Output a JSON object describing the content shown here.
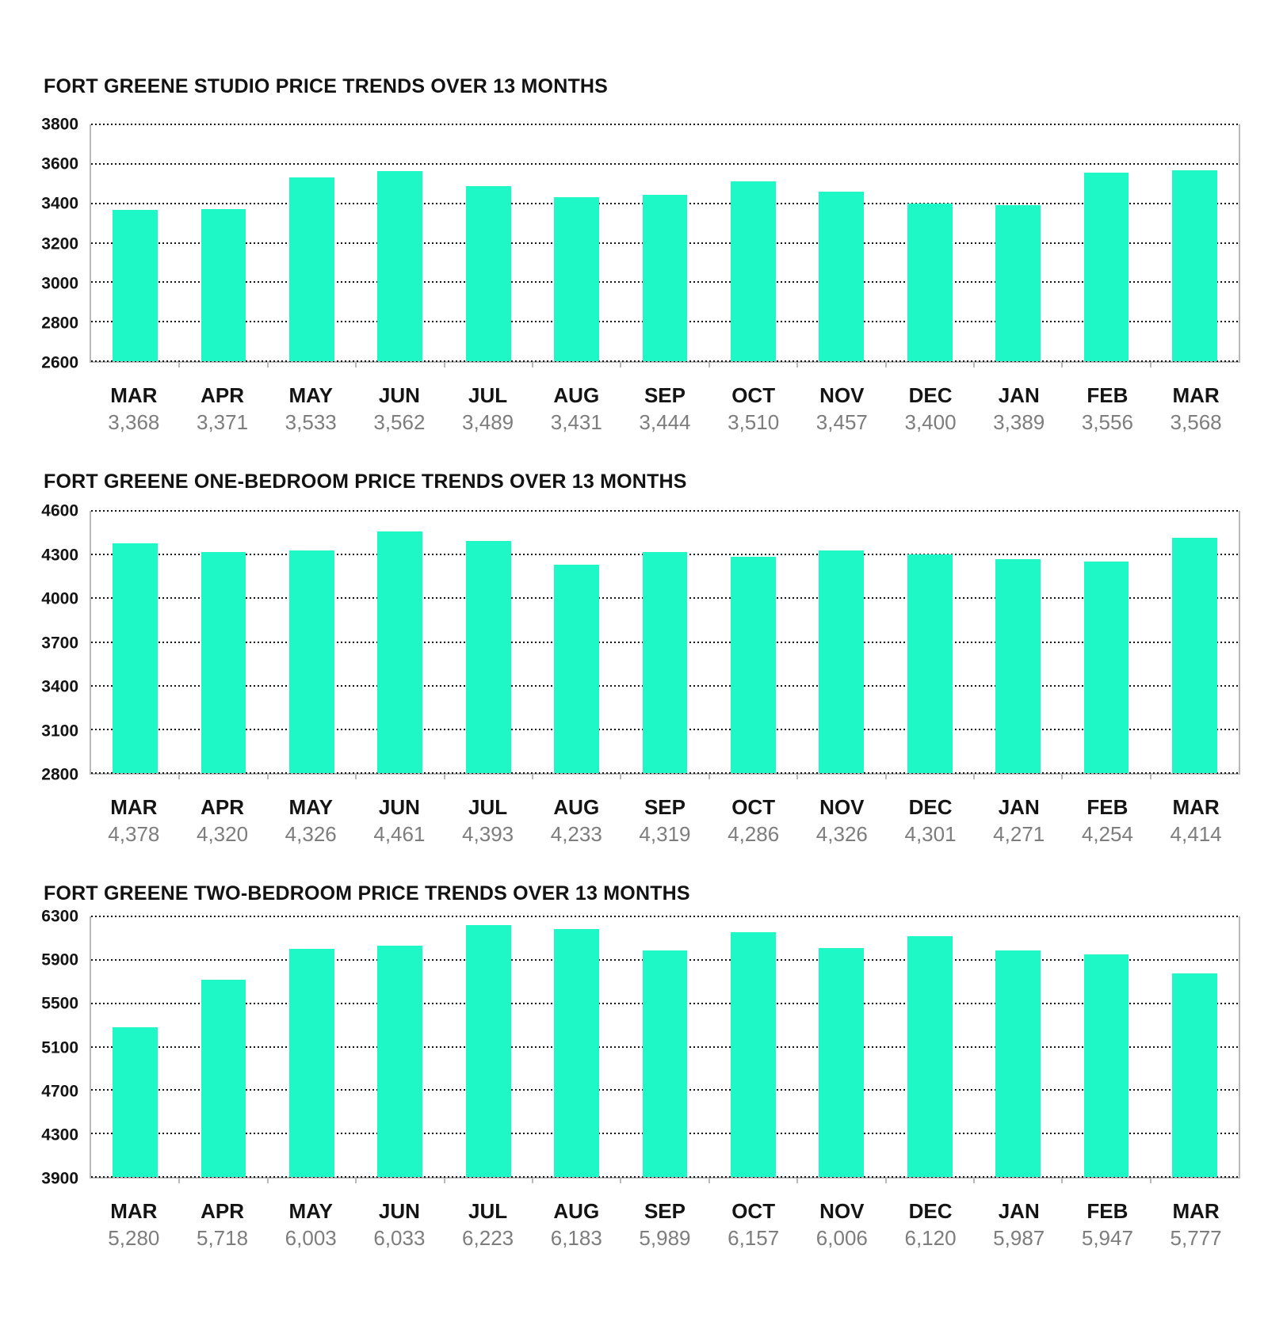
{
  "styles": {
    "bar_color": "#1ef7c6",
    "grid_color": "#141414",
    "axis_color": "#b9b9b9",
    "title_color": "#121212",
    "tick_color": "#141414",
    "value_color": "#7d7d7d",
    "background": "#ffffff"
  },
  "chart_data": [
    {
      "type": "bar",
      "title": "FORT GREENE STUDIO PRICE TRENDS OVER 13 MONTHS",
      "categories": [
        "MAR",
        "APR",
        "MAY",
        "JUN",
        "JUL",
        "AUG",
        "SEP",
        "OCT",
        "NOV",
        "DEC",
        "JAN",
        "FEB",
        "MAR"
      ],
      "values": [
        3368,
        3371,
        3533,
        3562,
        3489,
        3431,
        3444,
        3510,
        3457,
        3400,
        3389,
        3556,
        3568
      ],
      "value_labels": [
        "3,368",
        "3,371",
        "3,533",
        "3,562",
        "3,489",
        "3,431",
        "3,444",
        "3,510",
        "3,457",
        "3,400",
        "3,389",
        "3,556",
        "3,568"
      ],
      "ylim": [
        2600,
        3800
      ],
      "yticks": [
        2600,
        2800,
        3000,
        3200,
        3400,
        3600,
        3800
      ],
      "ytick_step": 200,
      "grid": true,
      "legend": null,
      "xlabel": "",
      "ylabel": ""
    },
    {
      "type": "bar",
      "title": "FORT GREENE ONE-BEDROOM PRICE TRENDS OVER 13 MONTHS",
      "categories": [
        "MAR",
        "APR",
        "MAY",
        "JUN",
        "JUL",
        "AUG",
        "SEP",
        "OCT",
        "NOV",
        "DEC",
        "JAN",
        "FEB",
        "MAR"
      ],
      "values": [
        4378,
        4320,
        4326,
        4461,
        4393,
        4233,
        4319,
        4286,
        4326,
        4301,
        4271,
        4254,
        4414
      ],
      "value_labels": [
        "4,378",
        "4,320",
        "4,326",
        "4,461",
        "4,393",
        "4,233",
        "4,319",
        "4,286",
        "4,326",
        "4,301",
        "4,271",
        "4,254",
        "4,414"
      ],
      "ylim": [
        2800,
        4600
      ],
      "yticks": [
        2800,
        3100,
        3400,
        3700,
        4000,
        4300,
        4600
      ],
      "ytick_step": 300,
      "grid": true,
      "legend": null,
      "xlabel": "",
      "ylabel": ""
    },
    {
      "type": "bar",
      "title": "FORT GREENE TWO-BEDROOM PRICE TRENDS OVER 13 MONTHS",
      "categories": [
        "MAR",
        "APR",
        "MAY",
        "JUN",
        "JUL",
        "AUG",
        "SEP",
        "OCT",
        "NOV",
        "DEC",
        "JAN",
        "FEB",
        "MAR"
      ],
      "values": [
        5280,
        5718,
        6003,
        6033,
        6223,
        6183,
        5989,
        6157,
        6006,
        6120,
        5987,
        5947,
        5777
      ],
      "value_labels": [
        "5,280",
        "5,718",
        "6,003",
        "6,033",
        "6,223",
        "6,183",
        "5,989",
        "6,157",
        "6,006",
        "6,120",
        "5,987",
        "5,947",
        "5,777"
      ],
      "ylim": [
        3900,
        6300
      ],
      "yticks": [
        3900,
        4300,
        4700,
        5100,
        5500,
        5900,
        6300
      ],
      "ytick_step": 400,
      "grid": true,
      "legend": null,
      "xlabel": "",
      "ylabel": ""
    }
  ]
}
